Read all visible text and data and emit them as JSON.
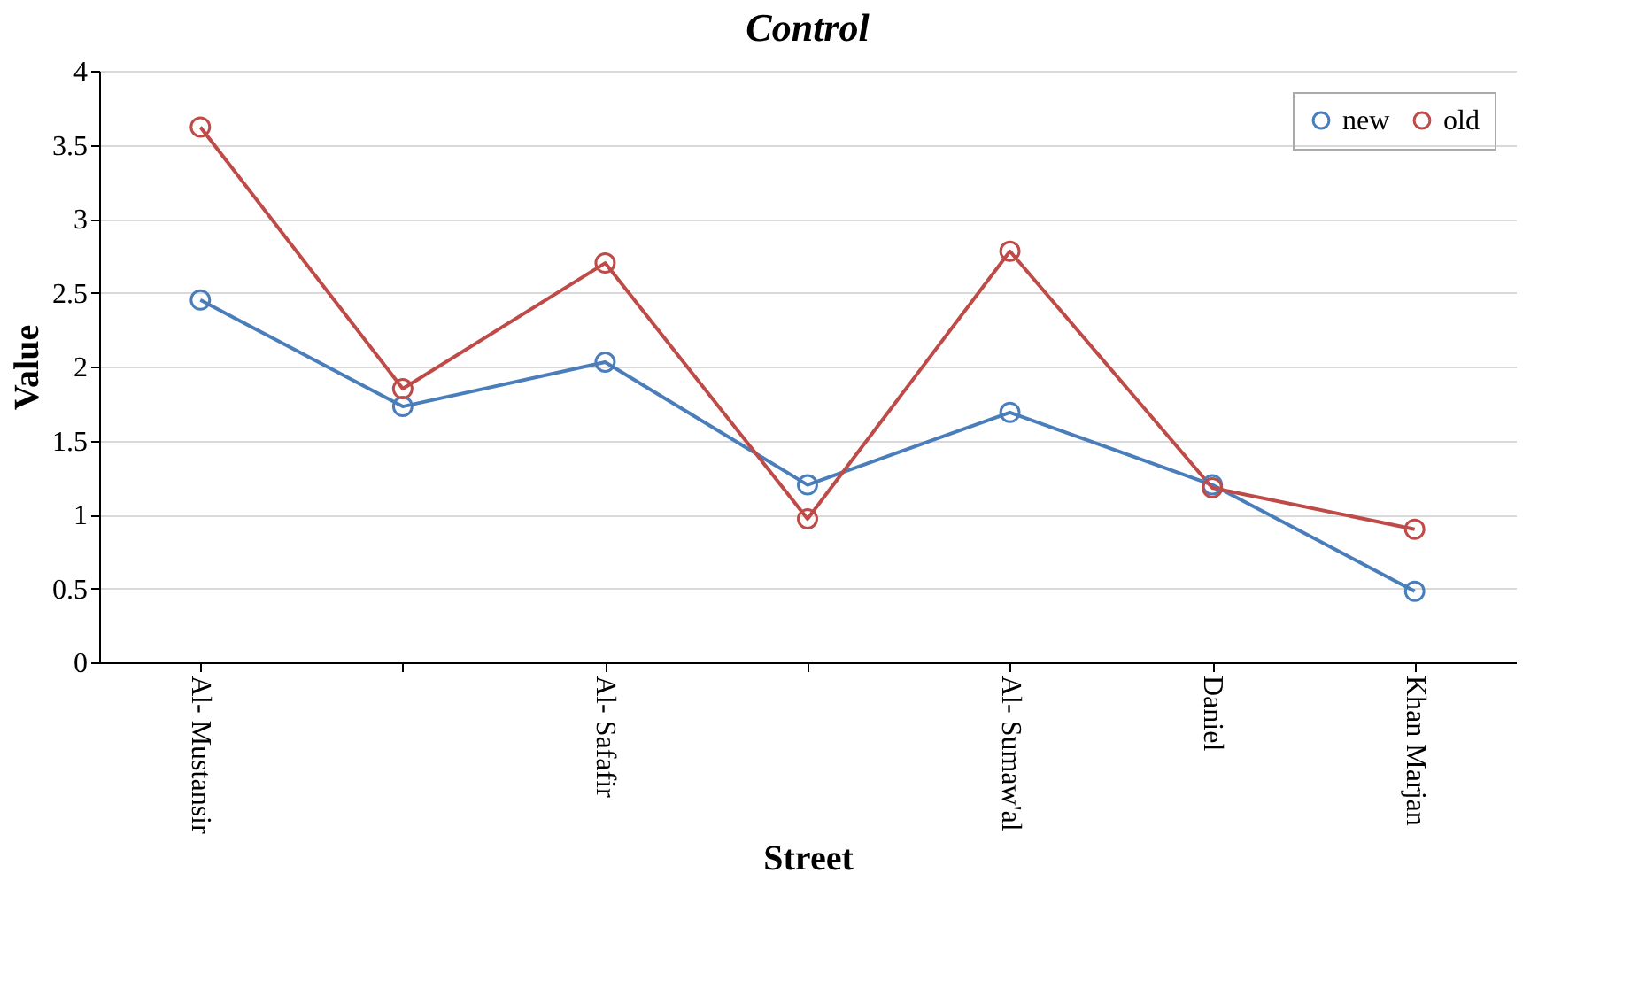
{
  "chart_data": {
    "type": "line",
    "title": "Control",
    "xlabel": "Street",
    "ylabel": "Value",
    "categories": [
      "Al- Mustansir",
      null,
      "Al- Safafir",
      null,
      "Al- Sumaw'al",
      "Daniel",
      "Khan Marjan"
    ],
    "series": [
      {
        "name": "new",
        "color": "#4a7ebb",
        "values": [
          2.45,
          1.73,
          2.03,
          1.2,
          1.69,
          1.2,
          0.48
        ]
      },
      {
        "name": "old",
        "color": "#be4b48",
        "values": [
          3.62,
          1.85,
          2.7,
          0.97,
          2.78,
          1.18,
          0.9
        ]
      }
    ],
    "ylim": [
      0,
      4
    ],
    "yticks": [
      0,
      0.5,
      1,
      1.5,
      2,
      2.5,
      3,
      3.5,
      4
    ],
    "grid": "y",
    "legend": "top right",
    "marker": "circle",
    "line_style": "solid"
  }
}
